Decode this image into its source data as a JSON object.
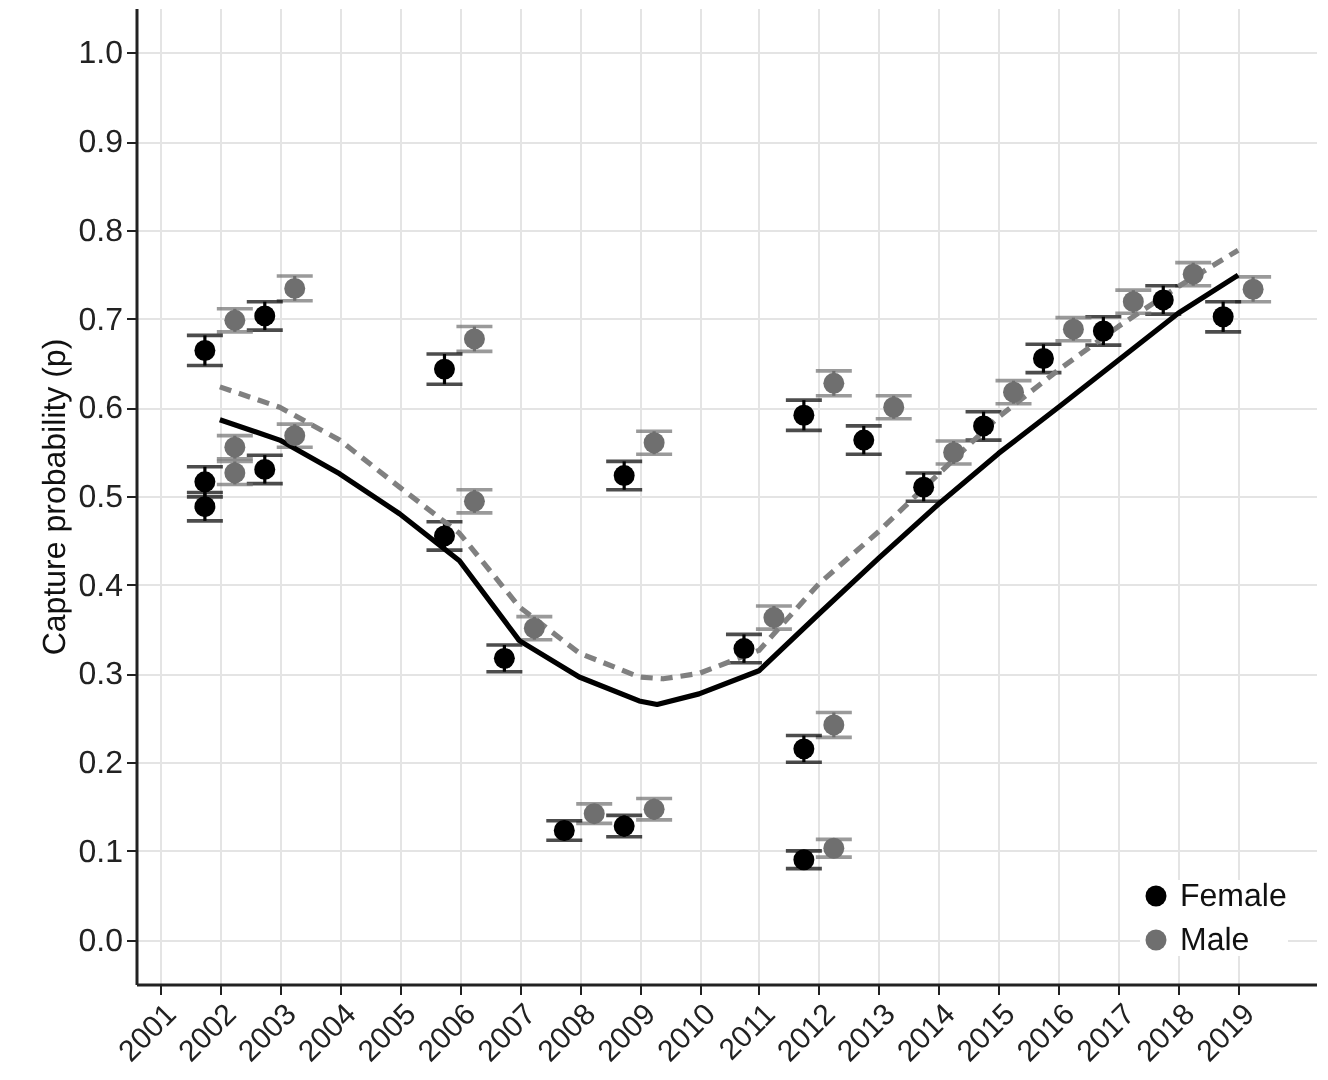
{
  "chart_data": {
    "type": "scatter",
    "ylabel": "Capture probability (p)",
    "xlim": [
      2000.6,
      2020.3
    ],
    "ylim": [
      -0.05,
      1.05
    ],
    "xticks": [
      2001,
      2002,
      2003,
      2004,
      2005,
      2006,
      2007,
      2008,
      2009,
      2010,
      2011,
      2012,
      2013,
      2014,
      2015,
      2016,
      2017,
      2018,
      2019
    ],
    "yticks": [
      {
        "value": 0,
        "label": "0.0"
      },
      0.1,
      0.2,
      0.3,
      0.4,
      0.5,
      0.6,
      0.7,
      0.8,
      0.9,
      {
        "value": 1,
        "label": "1.0"
      }
    ],
    "grid": true,
    "legend": "bottom right",
    "marker": "circle",
    "series": [
      {
        "name": "Female",
        "color": "#000000",
        "x": [
          2001.75,
          2001.75,
          2001.75,
          2002.75,
          2002.75,
          2005.75,
          2005.75,
          2006.75,
          2007.75,
          2008.75,
          2008.75,
          2010.75,
          2011.75,
          2011.75,
          2011.75,
          2012.75,
          2013.75,
          2014.75,
          2015.75,
          2016.75,
          2017.75,
          2018.75
        ],
        "values": [
          0.664,
          0.516,
          0.488,
          0.703,
          0.53,
          0.643,
          0.455,
          0.317,
          0.123,
          0.128,
          0.523,
          0.328,
          0.591,
          0.215,
          0.09,
          0.563,
          0.51,
          0.579,
          0.655,
          0.686,
          0.721,
          0.702
        ],
        "errors": [
          0.017,
          0.017,
          0.016,
          0.016,
          0.016,
          0.017,
          0.016,
          0.015,
          0.011,
          0.012,
          0.016,
          0.016,
          0.017,
          0.015,
          0.01,
          0.016,
          0.016,
          0.016,
          0.016,
          0.016,
          0.016,
          0.017
        ]
      },
      {
        "name": "Male",
        "color": "#6f6f6f",
        "x": [
          2002.25,
          2002.25,
          2002.25,
          2003.25,
          2003.25,
          2006.25,
          2006.25,
          2007.25,
          2008.25,
          2009.25,
          2009.25,
          2011.25,
          2012.25,
          2012.25,
          2012.25,
          2013.25,
          2014.25,
          2015.25,
          2016.25,
          2017.25,
          2018.25,
          2019.25
        ],
        "values": [
          0.698,
          0.555,
          0.526,
          0.734,
          0.568,
          0.677,
          0.494,
          0.351,
          0.142,
          0.147,
          0.56,
          0.363,
          0.242,
          0.103,
          0.627,
          0.6,
          0.549,
          0.617,
          0.688,
          0.719,
          0.75,
          0.733
        ],
        "errors": [
          0.013,
          0.013,
          0.013,
          0.014,
          0.013,
          0.014,
          0.013,
          0.013,
          0.011,
          0.012,
          0.013,
          0.013,
          0.014,
          0.01,
          0.014,
          0.013,
          0.013,
          0.013,
          0.013,
          0.013,
          0.013,
          0.014
        ]
      },
      {
        "type": "line",
        "color": "#000000",
        "line_style": "solid",
        "marker": "none",
        "x": [
          2002,
          2003,
          2004,
          2005,
          2006,
          2007,
          2008,
          2009,
          2009.3,
          2010,
          2011,
          2012,
          2013,
          2014,
          2015,
          2016,
          2017,
          2018,
          2019
        ],
        "values": [
          0.586,
          0.563,
          0.525,
          0.48,
          0.427,
          0.337,
          0.296,
          0.269,
          0.265,
          0.277,
          0.303,
          0.367,
          0.43,
          0.491,
          0.548,
          0.6,
          0.653,
          0.706,
          0.749
        ]
      },
      {
        "type": "line",
        "color": "#808080",
        "line_style": "dashed",
        "marker": "none",
        "x": [
          2002,
          2003,
          2004,
          2005,
          2006,
          2007,
          2008,
          2009,
          2009.4,
          2010,
          2011,
          2012,
          2013,
          2014,
          2015,
          2016,
          2017,
          2018,
          2019
        ],
        "values": [
          0.623,
          0.6,
          0.563,
          0.51,
          0.458,
          0.375,
          0.323,
          0.296,
          0.294,
          0.3,
          0.326,
          0.401,
          0.46,
          0.525,
          0.589,
          0.642,
          0.691,
          0.736,
          0.777
        ]
      }
    ]
  }
}
